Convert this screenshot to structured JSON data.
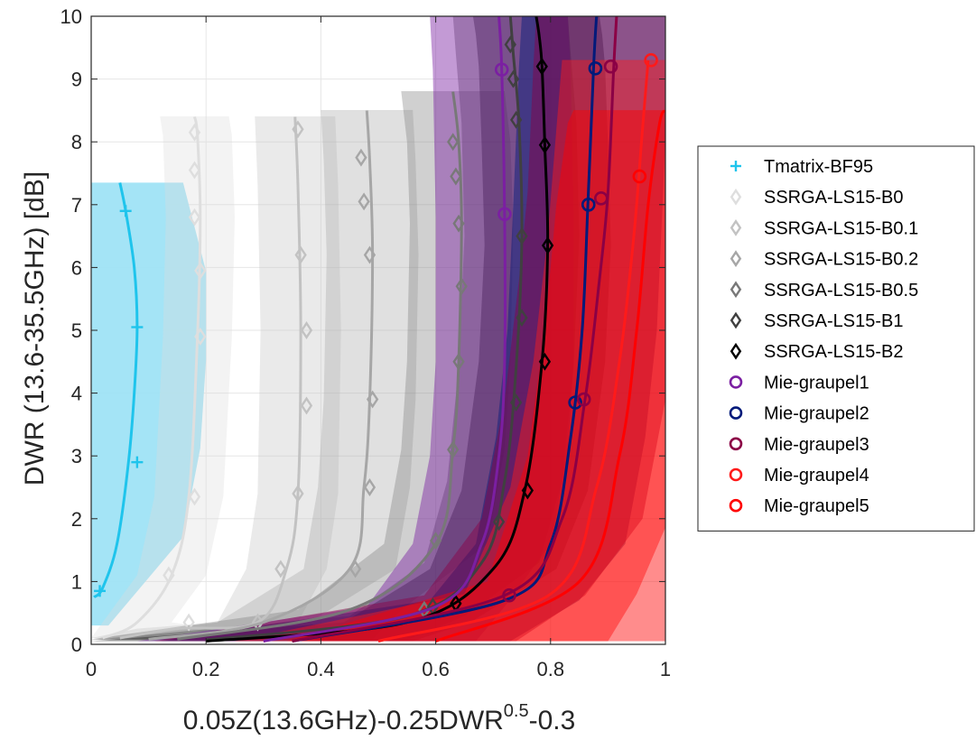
{
  "chart_data": {
    "type": "line",
    "xlabel_main": "0.05Z(13.6GHz)-0.25DWR",
    "xlabel_sup": "0.5",
    "xlabel_tail": "-0.3",
    "ylabel": "DWR (13.6-35.5GHz) [dB]",
    "xlim": [
      0,
      1
    ],
    "ylim": [
      0,
      10
    ],
    "xticks": [
      "0",
      "0.2",
      "0.4",
      "0.6",
      "0.8",
      "1"
    ],
    "yticks": [
      "0",
      "1",
      "2",
      "3",
      "4",
      "5",
      "6",
      "7",
      "8",
      "9",
      "10"
    ],
    "grid": true,
    "legend_position": "outside-right",
    "series": [
      {
        "name": "Tmatrix-BF95",
        "color": "#1fc4ec",
        "marker": "plus",
        "x": [
          0.005,
          0.02,
          0.045,
          0.065,
          0.075,
          0.08,
          0.075,
          0.06,
          0.05
        ],
        "y": [
          0.75,
          0.9,
          1.6,
          2.9,
          4.0,
          5.05,
          6.0,
          6.9,
          7.35
        ],
        "markers_x": [
          0.015,
          0.08,
          0.08,
          0.06
        ],
        "markers_y": [
          0.85,
          2.9,
          5.05,
          6.9
        ],
        "band": {
          "color": "#9fe3f5",
          "upper_y": 7.35,
          "x_right": [
            0.03,
            0.16,
            0.19,
            0.2,
            0.2,
            0.16
          ],
          "x_left": [
            0.0,
            0.0,
            0.0,
            0.0,
            0.0,
            0.0
          ]
        }
      },
      {
        "name": "SSRGA-LS15-B0",
        "color": "#dedede",
        "marker": "diamond",
        "x": [
          0.02,
          0.08,
          0.14,
          0.17,
          0.185,
          0.19,
          0.185,
          0.18
        ],
        "y": [
          0.1,
          0.35,
          1.1,
          2.35,
          4.9,
          6.8,
          8.1,
          8.4
        ],
        "markers_x": [
          0.17,
          0.135,
          0.18,
          0.19,
          0.19,
          0.18,
          0.18,
          0.18
        ],
        "markers_y": [
          0.35,
          1.1,
          2.35,
          4.9,
          5.95,
          6.8,
          7.55,
          8.15
        ]
      },
      {
        "name": "SSRGA-LS15-B0.1",
        "color": "#c2c2c2",
        "marker": "diamond",
        "x": [
          0.05,
          0.15,
          0.29,
          0.34,
          0.36,
          0.365,
          0.36,
          0.355
        ],
        "y": [
          0.1,
          0.25,
          0.35,
          1.2,
          2.4,
          5.0,
          7.3,
          8.4
        ],
        "markers_x": [
          0.29,
          0.33,
          0.36,
          0.375,
          0.375,
          0.365,
          0.36
        ],
        "markers_y": [
          0.35,
          1.2,
          2.4,
          3.8,
          5.0,
          6.2,
          8.2
        ]
      },
      {
        "name": "SSRGA-LS15-B0.2",
        "color": "#a6a6a6",
        "marker": "diamond",
        "x": [
          0.1,
          0.3,
          0.45,
          0.475,
          0.485,
          0.49,
          0.485,
          0.48
        ],
        "y": [
          0.08,
          0.35,
          1.2,
          2.5,
          3.9,
          6.2,
          7.7,
          8.5
        ],
        "markers_x": [
          0.46,
          0.485,
          0.49,
          0.485,
          0.475,
          0.47
        ],
        "markers_y": [
          1.2,
          2.5,
          3.9,
          6.2,
          7.05,
          7.75
        ]
      },
      {
        "name": "SSRGA-LS15-B0.5",
        "color": "#787878",
        "marker": "diamond",
        "x": [
          0.15,
          0.45,
          0.6,
          0.63,
          0.64,
          0.645,
          0.64,
          0.63
        ],
        "y": [
          0.08,
          0.55,
          1.6,
          3.1,
          4.5,
          6.7,
          8.0,
          8.8
        ],
        "markers_x": [
          0.58,
          0.6,
          0.63,
          0.64,
          0.645,
          0.64,
          0.635,
          0.63
        ],
        "markers_y": [
          0.55,
          1.65,
          3.1,
          4.5,
          5.7,
          6.7,
          7.45,
          8.0
        ]
      },
      {
        "name": "SSRGA-LS15-B1",
        "color": "#404040",
        "marker": "diamond",
        "x": [
          0.2,
          0.55,
          0.68,
          0.72,
          0.74,
          0.75,
          0.745,
          0.735,
          0.73
        ],
        "y": [
          0.07,
          0.45,
          1.3,
          2.6,
          4.4,
          6.5,
          8.3,
          9.4,
          10.0
        ],
        "markers_x": [
          0.595,
          0.71,
          0.74,
          0.75,
          0.75,
          0.74,
          0.735,
          0.73
        ],
        "markers_y": [
          0.6,
          1.95,
          3.85,
          5.2,
          6.5,
          8.35,
          9.0,
          9.55
        ]
      },
      {
        "name": "SSRGA-LS15-B2",
        "color": "#000000",
        "marker": "diamond",
        "x": [
          0.2,
          0.55,
          0.7,
          0.755,
          0.785,
          0.795,
          0.79,
          0.785,
          0.78,
          0.775
        ],
        "y": [
          0.05,
          0.35,
          1.2,
          2.45,
          4.5,
          6.35,
          7.95,
          9.2,
          9.7,
          10.0
        ],
        "markers_x": [
          0.635,
          0.76,
          0.79,
          0.795,
          0.79,
          0.785
        ],
        "markers_y": [
          0.65,
          2.45,
          4.5,
          6.35,
          7.95,
          9.2
        ]
      },
      {
        "name": "Mie-graupel1",
        "color": "#7b1fa2",
        "marker": "circle",
        "x": [
          0.3,
          0.6,
          0.68,
          0.71,
          0.72,
          0.72,
          0.715,
          0.71
        ],
        "y": [
          0.05,
          0.6,
          1.6,
          3.0,
          4.5,
          6.8,
          9.15,
          10.0
        ],
        "markers_x": [
          0.72,
          0.715
        ],
        "markers_y": [
          6.85,
          9.15
        ]
      },
      {
        "name": "Mie-graupel2",
        "color": "#001a7a",
        "marker": "circle",
        "x": [
          0.35,
          0.72,
          0.8,
          0.835,
          0.855,
          0.865,
          0.875,
          0.88
        ],
        "y": [
          0.05,
          0.7,
          1.6,
          3.3,
          5.0,
          7.0,
          9.2,
          10.0
        ],
        "markers_x": [
          0.843,
          0.866,
          0.878
        ],
        "markers_y": [
          3.85,
          7.0,
          9.17
        ]
      },
      {
        "name": "Mie-graupel3",
        "color": "#8b0045",
        "marker": "circle",
        "x": [
          0.35,
          0.72,
          0.82,
          0.86,
          0.885,
          0.9,
          0.91,
          0.915
        ],
        "y": [
          0.05,
          0.78,
          2.0,
          3.9,
          5.8,
          7.2,
          9.2,
          10.0
        ],
        "markers_x": [
          0.728,
          0.858,
          0.888,
          0.905
        ],
        "markers_y": [
          0.78,
          3.9,
          7.1,
          9.2
        ]
      },
      {
        "name": "Mie-graupel4",
        "color": "#ff1a1a",
        "marker": "circle",
        "x": [
          0.5,
          0.8,
          0.88,
          0.92,
          0.945,
          0.96,
          0.97
        ],
        "y": [
          0.05,
          0.8,
          2.5,
          4.5,
          6.5,
          8.2,
          9.3
        ],
        "markers_x": [
          0.975
        ],
        "markers_y": [
          9.3
        ]
      },
      {
        "name": "Mie-graupel5",
        "color": "#ff0000",
        "marker": "circle",
        "x": [
          0.6,
          0.85,
          0.92,
          0.95,
          0.97,
          0.99,
          1.0
        ],
        "y": [
          0.05,
          1.0,
          3.0,
          5.0,
          7.0,
          8.3,
          8.5
        ],
        "markers_x": [
          0.955
        ],
        "markers_y": [
          7.45
        ]
      }
    ]
  }
}
